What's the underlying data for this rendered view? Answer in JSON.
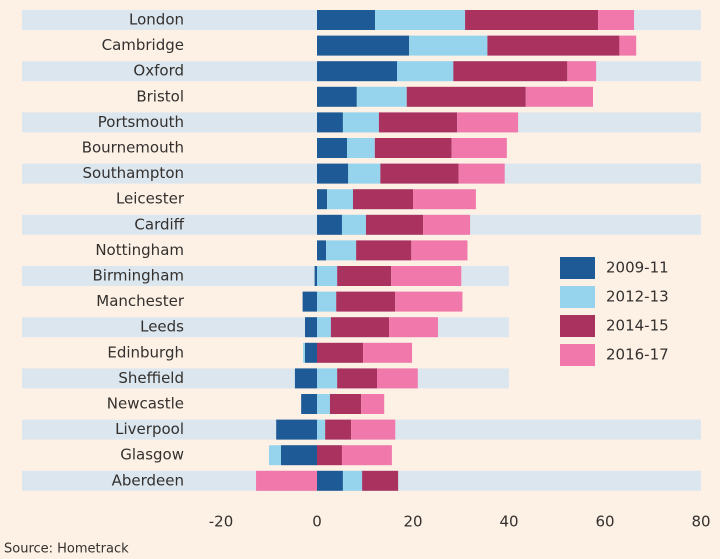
{
  "chart_data": {
    "type": "bar",
    "orientation": "horizontal",
    "stacked": true,
    "categories": [
      "London",
      "Cambridge",
      "Oxford",
      "Bristol",
      "Portsmouth",
      "Bournemouth",
      "Southampton",
      "Leicester",
      "Cardiff",
      "Nottingham",
      "Birmingham",
      "Manchester",
      "Leeds",
      "Edinburgh",
      "Sheffield",
      "Newcastle",
      "Liverpool",
      "Glasgow",
      "Aberdeen"
    ],
    "series": [
      {
        "name": "2009-11",
        "color": "#1d5a96",
        "values": [
          12.1,
          19.2,
          16.7,
          8.3,
          5.4,
          6.25,
          6.5,
          2.1,
          5.2,
          1.9,
          -0.5,
          -3,
          -2.5,
          -2.5,
          -4.6,
          -3.3,
          -8.5,
          -7.5,
          5.4
        ]
      },
      {
        "name": "2012-13",
        "color": "#96d4ed",
        "values": [
          18.75,
          16.3,
          11.7,
          10.4,
          7.5,
          5.8,
          6.7,
          5.4,
          5,
          6.25,
          4.2,
          4,
          2.9,
          -0.4,
          4.2,
          2.7,
          1.7,
          -2.5,
          4
        ]
      },
      {
        "name": "2014-15",
        "color": "#a9325f",
        "values": [
          27.7,
          27.5,
          23.75,
          24.8,
          16.3,
          16,
          16.3,
          12.5,
          11.9,
          11.5,
          11.25,
          12.3,
          12.1,
          9.6,
          8.3,
          6.5,
          5.4,
          5.2,
          7.5
        ]
      },
      {
        "name": "2016-17",
        "color": "#f078aa",
        "values": [
          7.5,
          3.5,
          6,
          14,
          12.7,
          11.5,
          9.6,
          13.1,
          9.8,
          11.7,
          14.6,
          14,
          10.2,
          10.2,
          8.5,
          4.8,
          9.2,
          10.4,
          -12.7
        ]
      }
    ],
    "xlim": [
      -20,
      80
    ],
    "xticks": [
      -20,
      0,
      20,
      40,
      60,
      80
    ],
    "source": "Source: Hometrack"
  }
}
